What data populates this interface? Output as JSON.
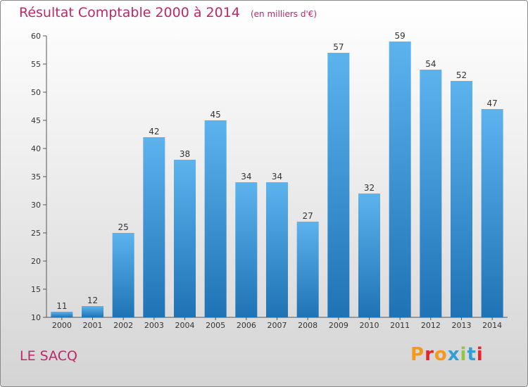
{
  "header": {
    "title": "Résultat Comptable 2000 à 2014",
    "unit": "(en milliers d'€)"
  },
  "footer": {
    "commune": "LE SACQ",
    "brand": "Proxiti",
    "brand_colors": [
      "#f39a1e",
      "#e3262d",
      "#f39a1e",
      "#2f9fd6",
      "#8dc63f",
      "#2f9fd6",
      "#e3262d"
    ]
  },
  "colors": {
    "title": "#c0266a",
    "bar_top": "#5cb3ee",
    "bar_bottom": "#1f73b4"
  },
  "chart_data": {
    "type": "bar",
    "title": "Résultat Comptable 2000 à 2014",
    "xlabel": "",
    "ylabel": "",
    "categories": [
      "2000",
      "2001",
      "2002",
      "2003",
      "2004",
      "2005",
      "2006",
      "2007",
      "2008",
      "2009",
      "2010",
      "2011",
      "2012",
      "2013",
      "2014"
    ],
    "values": [
      11,
      12,
      25,
      42,
      38,
      45,
      34,
      34,
      27,
      57,
      32,
      59,
      54,
      52,
      47
    ],
    "ylim": [
      10,
      60
    ],
    "yticks": [
      10,
      15,
      20,
      25,
      30,
      35,
      40,
      45,
      50,
      55,
      60
    ],
    "grid": false,
    "data_labels": true
  }
}
